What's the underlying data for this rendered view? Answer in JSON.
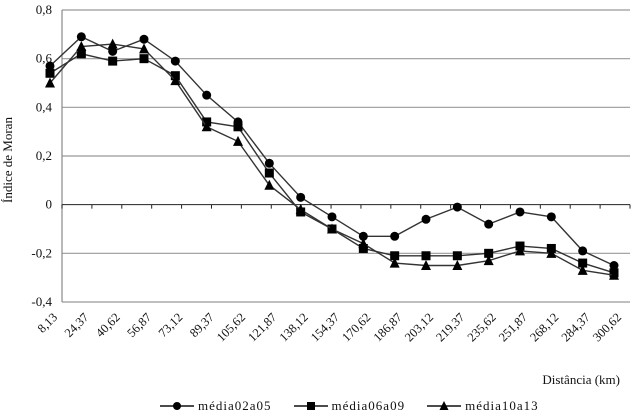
{
  "chart_data": {
    "type": "line",
    "title": "",
    "xlabel": "Distância (km)",
    "ylabel": "Índice de Moran",
    "ylim": [
      -0.4,
      0.8
    ],
    "yticks": [
      "0,8",
      "0,6",
      "0,4",
      "0,2",
      "0",
      "-0,2",
      "-0,4"
    ],
    "ytick_values": [
      0.8,
      0.6,
      0.4,
      0.2,
      0,
      -0.2,
      -0.4
    ],
    "grid": "horizontal",
    "legend_position": "bottom",
    "categories": [
      "8,13",
      "24,37",
      "40,62",
      "56,87",
      "73,12",
      "89,37",
      "105,62",
      "121,87",
      "138,12",
      "154,37",
      "170,62",
      "186,87",
      "203,12",
      "219,37",
      "235,62",
      "251,87",
      "268,12",
      "284,37",
      "300,62"
    ],
    "series": [
      {
        "name": "média02a05",
        "marker": "circle",
        "values": [
          0.57,
          0.69,
          0.63,
          0.68,
          0.59,
          0.45,
          0.34,
          0.17,
          0.03,
          -0.05,
          -0.13,
          -0.13,
          -0.06,
          -0.01,
          -0.08,
          -0.03,
          -0.05,
          -0.19,
          -0.25
        ]
      },
      {
        "name": "média06a09",
        "marker": "square",
        "values": [
          0.54,
          0.62,
          0.59,
          0.6,
          0.53,
          0.34,
          0.32,
          0.13,
          -0.03,
          -0.1,
          -0.18,
          -0.21,
          -0.21,
          -0.21,
          -0.2,
          -0.17,
          -0.18,
          -0.24,
          -0.28
        ]
      },
      {
        "name": "média10a13",
        "marker": "triangle",
        "values": [
          0.5,
          0.65,
          0.66,
          0.64,
          0.51,
          0.32,
          0.26,
          0.08,
          -0.02,
          -0.1,
          -0.16,
          -0.24,
          -0.25,
          -0.25,
          -0.23,
          -0.19,
          -0.2,
          -0.27,
          -0.29
        ]
      }
    ]
  },
  "colors": {
    "line": "#333333",
    "marker": "#000000",
    "grid": "#999999",
    "axis": "#888888"
  }
}
